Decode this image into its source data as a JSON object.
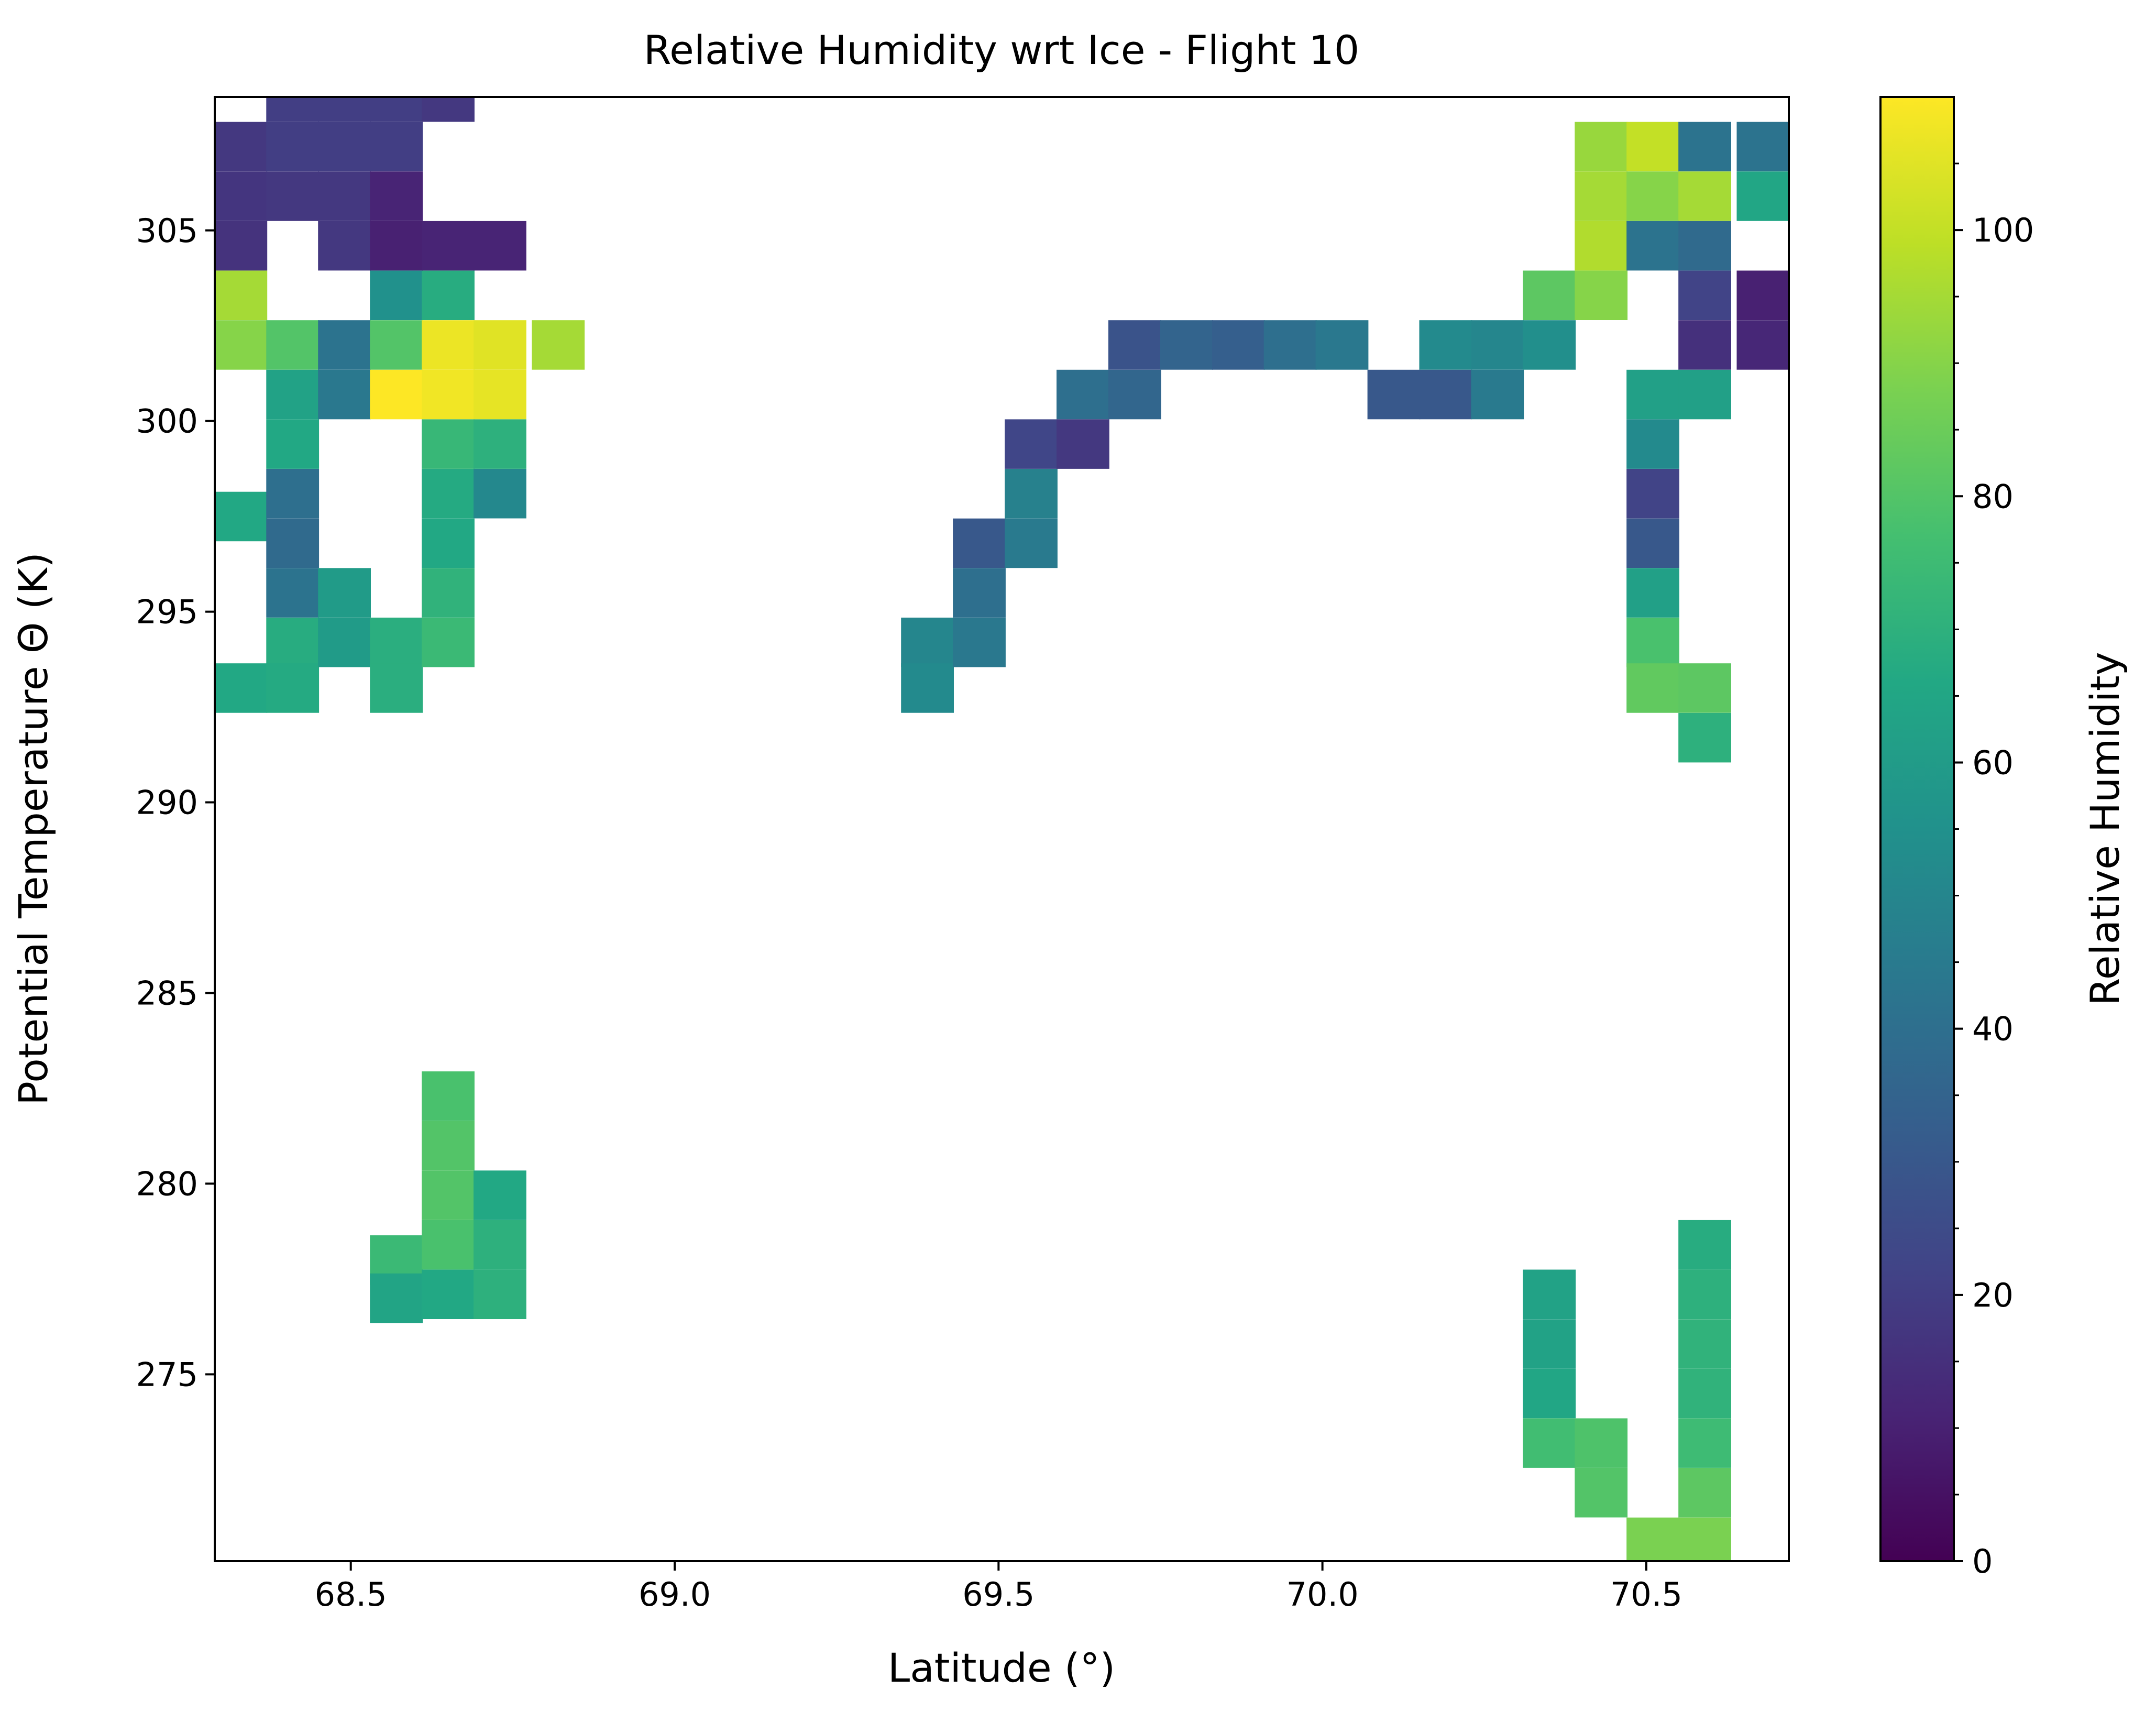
{
  "chart_data": {
    "type": "heatmap",
    "title": "Relative Humidity wrt Ice - Flight 10",
    "xlabel": "Latitude (°)",
    "ylabel": "Potential Temperature Θ (K)",
    "colorbar_label": "Relative Humidity",
    "colormap": "viridis",
    "xlim": [
      68.29,
      70.72
    ],
    "ylim": [
      270.1,
      308.5
    ],
    "clim": [
      0,
      110
    ],
    "xticks": [
      68.5,
      69.0,
      69.5,
      70.0,
      70.5
    ],
    "xtick_labels": [
      "68.5",
      "69.0",
      "69.5",
      "70.0",
      "70.5"
    ],
    "yticks": [
      275,
      280,
      285,
      290,
      295,
      300,
      305
    ],
    "ytick_labels": [
      "275",
      "280",
      "285",
      "290",
      "295",
      "300",
      "305"
    ],
    "cticks": [
      0,
      20,
      40,
      60,
      80,
      100
    ],
    "ctick_labels": [
      "0",
      "20",
      "40",
      "60",
      "80",
      "100"
    ],
    "grid": false,
    "bin_width_lat": 0.081,
    "bin_height_theta": 1.29,
    "cell_order": [
      "lat",
      "theta",
      "value"
    ],
    "cells": [
      [
        68.33,
        307.2,
        18
      ],
      [
        68.33,
        305.9,
        17
      ],
      [
        68.33,
        304.6,
        16
      ],
      [
        68.33,
        303.3,
        95
      ],
      [
        68.33,
        302.0,
        90
      ],
      [
        68.33,
        297.5,
        66
      ],
      [
        68.33,
        293.0,
        66
      ],
      [
        68.41,
        308.5,
        20
      ],
      [
        68.41,
        307.2,
        20
      ],
      [
        68.41,
        305.9,
        18
      ],
      [
        68.41,
        302.0,
        80
      ],
      [
        68.41,
        300.7,
        63
      ],
      [
        68.41,
        299.4,
        66
      ],
      [
        68.41,
        298.1,
        40
      ],
      [
        68.41,
        296.8,
        38
      ],
      [
        68.41,
        295.5,
        42
      ],
      [
        68.41,
        294.2,
        68
      ],
      [
        68.41,
        293.0,
        67
      ],
      [
        68.49,
        308.5,
        20
      ],
      [
        68.49,
        307.2,
        20
      ],
      [
        68.49,
        305.9,
        18
      ],
      [
        68.49,
        304.6,
        18
      ],
      [
        68.49,
        302.0,
        42
      ],
      [
        68.49,
        300.7,
        44
      ],
      [
        68.49,
        295.5,
        60
      ],
      [
        68.49,
        294.2,
        60
      ],
      [
        68.57,
        308.5,
        20
      ],
      [
        68.57,
        307.2,
        20
      ],
      [
        68.57,
        305.9,
        11
      ],
      [
        68.57,
        304.6,
        10
      ],
      [
        68.57,
        303.3,
        55
      ],
      [
        68.57,
        302.0,
        80
      ],
      [
        68.57,
        300.7,
        110
      ],
      [
        68.57,
        294.2,
        69
      ],
      [
        68.57,
        293.0,
        69
      ],
      [
        68.57,
        278.0,
        74
      ],
      [
        68.57,
        277.0,
        64
      ],
      [
        68.65,
        308.5,
        18
      ],
      [
        68.65,
        304.6,
        11
      ],
      [
        68.65,
        303.3,
        68
      ],
      [
        68.65,
        302.0,
        107
      ],
      [
        68.65,
        300.7,
        108
      ],
      [
        68.65,
        299.4,
        73
      ],
      [
        68.65,
        298.1,
        67
      ],
      [
        68.65,
        296.8,
        66
      ],
      [
        68.65,
        295.5,
        71
      ],
      [
        68.65,
        294.2,
        74
      ],
      [
        68.65,
        282.3,
        78
      ],
      [
        68.65,
        281.0,
        80
      ],
      [
        68.65,
        279.7,
        80
      ],
      [
        68.65,
        278.4,
        78
      ],
      [
        68.65,
        277.1,
        66
      ],
      [
        68.73,
        304.6,
        11
      ],
      [
        68.73,
        302.0,
        105
      ],
      [
        68.73,
        300.7,
        106
      ],
      [
        68.73,
        299.4,
        70
      ],
      [
        68.73,
        298.1,
        51
      ],
      [
        68.73,
        279.7,
        66
      ],
      [
        68.73,
        278.4,
        70
      ],
      [
        68.73,
        277.1,
        70
      ],
      [
        68.82,
        302.0,
        95
      ],
      [
        69.39,
        294.2,
        50
      ],
      [
        69.39,
        293.0,
        52
      ],
      [
        69.47,
        296.8,
        30
      ],
      [
        69.47,
        295.5,
        40
      ],
      [
        69.47,
        294.2,
        44
      ],
      [
        69.55,
        299.4,
        23
      ],
      [
        69.55,
        298.1,
        48
      ],
      [
        69.55,
        296.8,
        45
      ],
      [
        69.63,
        300.7,
        40
      ],
      [
        69.63,
        299.4,
        18
      ],
      [
        69.71,
        302.0,
        28
      ],
      [
        69.71,
        300.7,
        36
      ],
      [
        69.79,
        302.0,
        35
      ],
      [
        69.87,
        302.0,
        33
      ],
      [
        69.95,
        302.0,
        40
      ],
      [
        70.03,
        302.0,
        44
      ],
      [
        70.11,
        300.7,
        30
      ],
      [
        70.19,
        302.0,
        52
      ],
      [
        70.19,
        300.7,
        30
      ],
      [
        70.27,
        302.0,
        50
      ],
      [
        70.27,
        300.7,
        45
      ],
      [
        70.35,
        303.3,
        82
      ],
      [
        70.35,
        302.0,
        54
      ],
      [
        70.35,
        277.1,
        63
      ],
      [
        70.35,
        275.8,
        63
      ],
      [
        70.35,
        274.5,
        65
      ],
      [
        70.35,
        273.2,
        76
      ],
      [
        70.43,
        307.2,
        93
      ],
      [
        70.43,
        305.9,
        95
      ],
      [
        70.43,
        304.6,
        97
      ],
      [
        70.43,
        303.3,
        90
      ],
      [
        70.43,
        273.2,
        79
      ],
      [
        70.43,
        271.9,
        80
      ],
      [
        70.51,
        307.2,
        100
      ],
      [
        70.51,
        305.9,
        90
      ],
      [
        70.51,
        304.6,
        42
      ],
      [
        70.51,
        300.7,
        62
      ],
      [
        70.51,
        299.4,
        52
      ],
      [
        70.51,
        298.1,
        22
      ],
      [
        70.51,
        296.8,
        30
      ],
      [
        70.51,
        295.5,
        62
      ],
      [
        70.51,
        294.2,
        78
      ],
      [
        70.51,
        293.0,
        83
      ],
      [
        70.51,
        270.6,
        88
      ],
      [
        70.59,
        307.2,
        42
      ],
      [
        70.59,
        305.9,
        95
      ],
      [
        70.59,
        304.6,
        38
      ],
      [
        70.59,
        303.3,
        22
      ],
      [
        70.59,
        302.0,
        15
      ],
      [
        70.59,
        300.7,
        62
      ],
      [
        70.59,
        293.0,
        82
      ],
      [
        70.59,
        291.7,
        70
      ],
      [
        70.59,
        278.4,
        68
      ],
      [
        70.59,
        277.1,
        70
      ],
      [
        70.59,
        275.8,
        71
      ],
      [
        70.59,
        274.5,
        71
      ],
      [
        70.59,
        273.2,
        75
      ],
      [
        70.59,
        271.9,
        82
      ],
      [
        70.59,
        270.6,
        88
      ],
      [
        70.68,
        307.2,
        42
      ],
      [
        70.68,
        305.9,
        65
      ],
      [
        70.68,
        303.3,
        10
      ],
      [
        70.68,
        302.0,
        12
      ]
    ]
  }
}
